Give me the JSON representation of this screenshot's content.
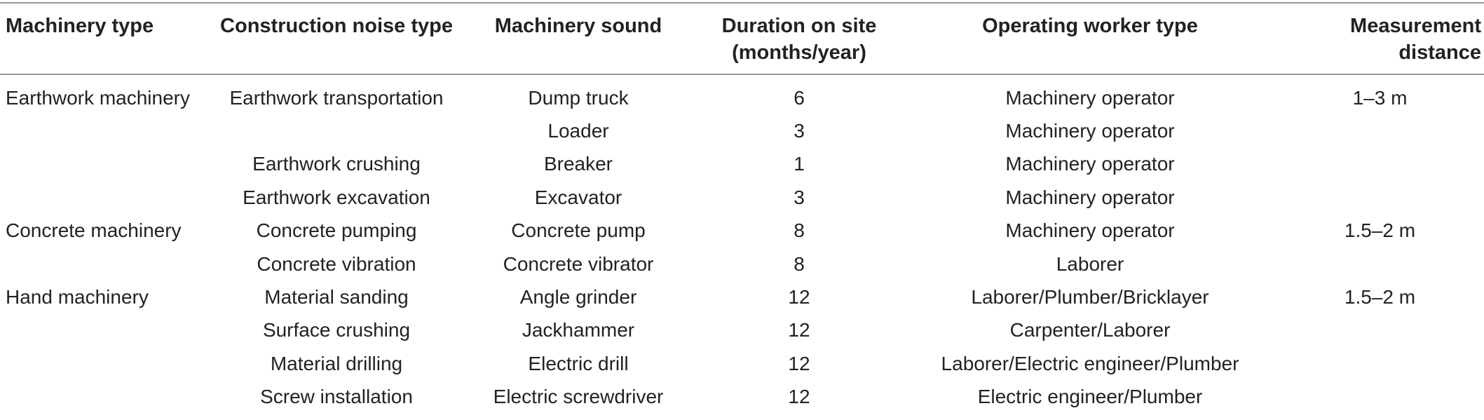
{
  "table": {
    "headers": [
      {
        "line1": "Machinery type",
        "line2": ""
      },
      {
        "line1": "Construction noise type",
        "line2": ""
      },
      {
        "line1": "Machinery sound",
        "line2": ""
      },
      {
        "line1": "Duration on site",
        "line2": "(months/year)"
      },
      {
        "line1": "Operating worker type",
        "line2": ""
      },
      {
        "line1": "Measurement distance",
        "line2": ""
      }
    ],
    "rows": [
      {
        "machinery_type": "Earthwork machinery",
        "noise_type": "Earthwork transportation",
        "sound": "Dump truck",
        "duration": "6",
        "worker": "Machinery operator",
        "distance": "1–3 m"
      },
      {
        "machinery_type": "",
        "noise_type": "",
        "sound": "Loader",
        "duration": "3",
        "worker": "Machinery operator",
        "distance": ""
      },
      {
        "machinery_type": "",
        "noise_type": "Earthwork crushing",
        "sound": "Breaker",
        "duration": "1",
        "worker": "Machinery operator",
        "distance": ""
      },
      {
        "machinery_type": "",
        "noise_type": "Earthwork excavation",
        "sound": "Excavator",
        "duration": "3",
        "worker": "Machinery operator",
        "distance": ""
      },
      {
        "machinery_type": "Concrete machinery",
        "noise_type": "Concrete pumping",
        "sound": "Concrete pump",
        "duration": "8",
        "worker": "Machinery operator",
        "distance": "1.5–2 m"
      },
      {
        "machinery_type": "",
        "noise_type": "Concrete vibration",
        "sound": "Concrete vibrator",
        "duration": "8",
        "worker": "Laborer",
        "distance": ""
      },
      {
        "machinery_type": "Hand machinery",
        "noise_type": "Material sanding",
        "sound": "Angle grinder",
        "duration": "12",
        "worker": "Laborer/Plumber/Bricklayer",
        "distance": "1.5–2 m"
      },
      {
        "machinery_type": "",
        "noise_type": "Surface crushing",
        "sound": "Jackhammer",
        "duration": "12",
        "worker": "Carpenter/Laborer",
        "distance": ""
      },
      {
        "machinery_type": "",
        "noise_type": "Material drilling",
        "sound": "Electric drill",
        "duration": "12",
        "worker": "Laborer/Electric engineer/Plumber",
        "distance": ""
      },
      {
        "machinery_type": "",
        "noise_type": "Screw installation",
        "sound": "Electric screwdriver",
        "duration": "12",
        "worker": "Electric engineer/Plumber",
        "distance": ""
      }
    ]
  }
}
